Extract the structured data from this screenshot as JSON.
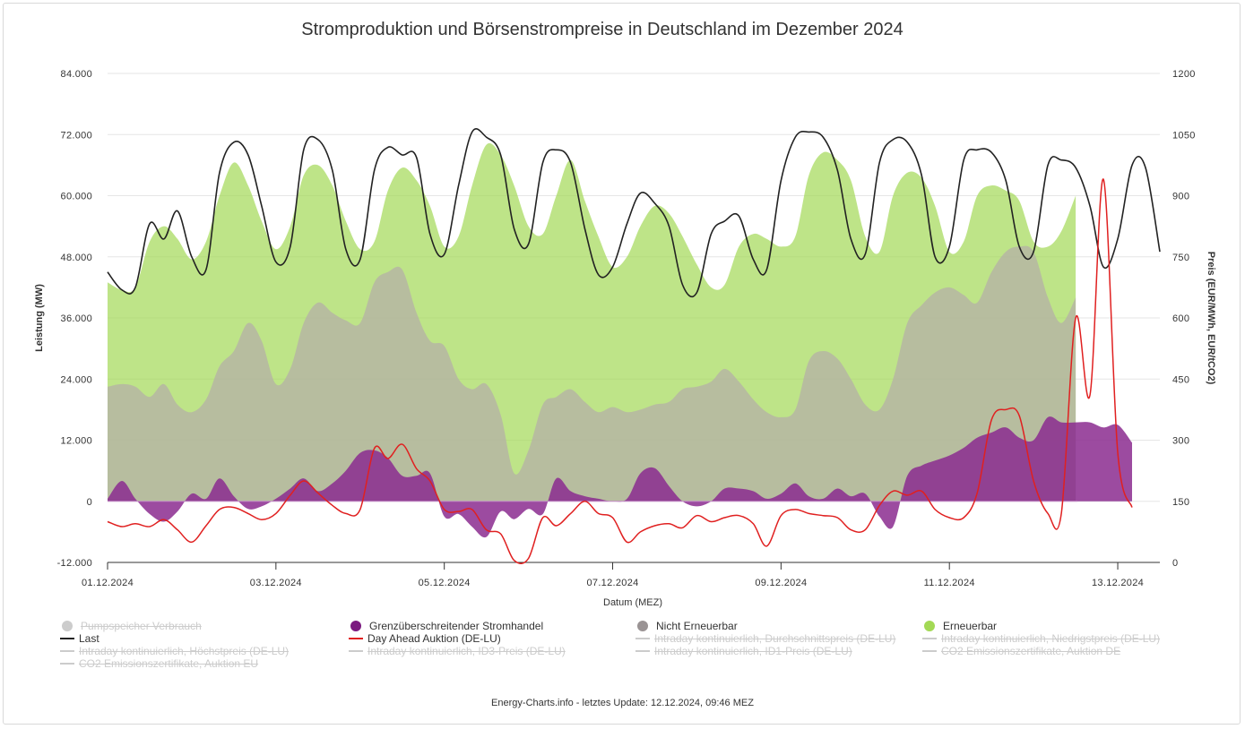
{
  "chart_data": {
    "type": "area",
    "title": "Stromproduktion und Börsenstrompreise in Deutschland im Dezember 2024",
    "xlabel": "Datum (MEZ)",
    "ylabel_left": "Leistung (MW)",
    "ylabel_right": "Preis (EUR/MWh, EUR/tCO2)",
    "ylim_left": [
      -12000,
      84000
    ],
    "ylim_right": [
      0,
      1200
    ],
    "xlim": [
      0.0,
      12.5
    ],
    "y_ticks_left": [
      "-12.000",
      "0",
      "12.000",
      "24.000",
      "36.000",
      "48.000",
      "60.000",
      "72.000",
      "84.000"
    ],
    "y_ticks_right": [
      "0",
      "150",
      "300",
      "450",
      "600",
      "750",
      "900",
      "1050",
      "1200"
    ],
    "x_ticks": [
      "01.12.2024",
      "03.12.2024",
      "05.12.2024",
      "07.12.2024",
      "09.12.2024",
      "11.12.2024",
      "13.12.2024"
    ],
    "grid": true,
    "legend_position": "bottom",
    "x_unit": "days since 01.12.2024 00:00",
    "series": [
      {
        "name": "Erneuerbar",
        "kind": "area",
        "axis": "left",
        "color": "#a3d955",
        "x": [
          0,
          0.17,
          0.33,
          0.5,
          0.67,
          0.83,
          1.0,
          1.17,
          1.33,
          1.5,
          1.67,
          1.83,
          2.0,
          2.17,
          2.33,
          2.5,
          2.67,
          2.83,
          3.0,
          3.17,
          3.33,
          3.5,
          3.67,
          3.83,
          4.0,
          4.17,
          4.33,
          4.5,
          4.67,
          4.83,
          5.0,
          5.17,
          5.33,
          5.5,
          5.67,
          5.83,
          6.0,
          6.17,
          6.33,
          6.5,
          6.67,
          6.83,
          7.0,
          7.17,
          7.33,
          7.5,
          7.67,
          7.83,
          8.0,
          8.17,
          8.33,
          8.5,
          8.67,
          8.83,
          9.0,
          9.17,
          9.33,
          9.5,
          9.67,
          9.83,
          10.0,
          10.17,
          10.33,
          10.5,
          10.67,
          10.83,
          11.0,
          11.17,
          11.33,
          11.5
        ],
        "y": [
          43000,
          41500,
          42000,
          51000,
          54000,
          51500,
          47500,
          51000,
          60000,
          66500,
          62000,
          55000,
          49500,
          54000,
          64000,
          66000,
          62000,
          55000,
          49500,
          51000,
          61000,
          65500,
          63000,
          58000,
          50000,
          52000,
          62000,
          70000,
          68000,
          62000,
          54000,
          52500,
          60000,
          67000,
          59000,
          52000,
          46000,
          48000,
          54000,
          58000,
          56500,
          52000,
          46500,
          42000,
          42500,
          50000,
          52500,
          51500,
          50000,
          52000,
          64000,
          68500,
          67000,
          63000,
          52000,
          49000,
          60000,
          64500,
          63500,
          58000,
          49000,
          51000,
          60000,
          62000,
          61000,
          59000,
          51000,
          50000,
          53000,
          60000
        ]
      },
      {
        "name": "Nicht Erneuerbar",
        "kind": "area",
        "axis": "left",
        "color": "#b3acaa",
        "x": [
          0,
          0.17,
          0.33,
          0.5,
          0.67,
          0.83,
          1.0,
          1.17,
          1.33,
          1.5,
          1.67,
          1.83,
          2.0,
          2.17,
          2.33,
          2.5,
          2.67,
          2.83,
          3.0,
          3.17,
          3.33,
          3.5,
          3.67,
          3.83,
          4.0,
          4.17,
          4.33,
          4.5,
          4.67,
          4.83,
          5.0,
          5.17,
          5.33,
          5.5,
          5.67,
          5.83,
          6.0,
          6.17,
          6.33,
          6.5,
          6.67,
          6.83,
          7.0,
          7.17,
          7.33,
          7.5,
          7.67,
          7.83,
          8.0,
          8.17,
          8.33,
          8.5,
          8.67,
          8.83,
          9.0,
          9.17,
          9.33,
          9.5,
          9.67,
          9.83,
          10.0,
          10.17,
          10.33,
          10.5,
          10.67,
          10.83,
          11.0,
          11.17,
          11.33,
          11.5
        ],
        "y": [
          22500,
          23000,
          22500,
          20500,
          23000,
          19000,
          17500,
          20000,
          26500,
          29500,
          35000,
          31500,
          23000,
          26000,
          35000,
          39000,
          37000,
          35500,
          35000,
          43000,
          45000,
          45500,
          37000,
          31500,
          30500,
          24000,
          22000,
          23000,
          17000,
          5500,
          10000,
          19000,
          20500,
          22000,
          19500,
          17500,
          18500,
          17500,
          18000,
          19000,
          19500,
          22000,
          22500,
          23500,
          26000,
          23500,
          20000,
          17500,
          16500,
          18000,
          27500,
          29500,
          28000,
          24000,
          19000,
          18000,
          24000,
          35000,
          38500,
          41000,
          42000,
          40500,
          39000,
          45000,
          49000,
          50000,
          49000,
          40000,
          35000,
          40000
        ]
      },
      {
        "name": "Grenzüberschreitender Stromhandel",
        "kind": "area",
        "axis": "left",
        "color": "#8b2c8f",
        "x": [
          0,
          0.17,
          0.33,
          0.5,
          0.67,
          0.83,
          1.0,
          1.17,
          1.33,
          1.5,
          1.67,
          1.83,
          2.0,
          2.17,
          2.33,
          2.5,
          2.67,
          2.83,
          3.0,
          3.17,
          3.33,
          3.5,
          3.67,
          3.83,
          4.0,
          4.17,
          4.33,
          4.5,
          4.67,
          4.83,
          5.0,
          5.17,
          5.33,
          5.5,
          5.67,
          5.83,
          6.0,
          6.17,
          6.33,
          6.5,
          6.67,
          6.83,
          7.0,
          7.17,
          7.33,
          7.5,
          7.67,
          7.83,
          8.0,
          8.17,
          8.33,
          8.5,
          8.67,
          8.83,
          9.0,
          9.17,
          9.33,
          9.5,
          9.67,
          9.83,
          10.0,
          10.17,
          10.33,
          10.5,
          10.67,
          10.83,
          11.0,
          11.17,
          11.33,
          11.5,
          11.67,
          11.83,
          12.0,
          12.17
        ],
        "y": [
          500,
          4000,
          500,
          -2500,
          -4000,
          -2000,
          1500,
          500,
          4500,
          1000,
          -1500,
          -1000,
          500,
          2500,
          4500,
          2000,
          3500,
          6000,
          9500,
          10000,
          8500,
          5000,
          5000,
          5500,
          -3000,
          -2500,
          -5000,
          -7000,
          -2000,
          -3500,
          -1500,
          -2500,
          4500,
          2000,
          1000,
          500,
          0,
          500,
          5500,
          6500,
          3000,
          0,
          -1000,
          0,
          2500,
          2500,
          2000,
          500,
          1500,
          3500,
          1000,
          500,
          2500,
          1000,
          1500,
          -3000,
          -5000,
          5000,
          7000,
          8000,
          9000,
          10500,
          12500,
          13500,
          14500,
          12500,
          12000,
          16500,
          15500,
          15500,
          15500,
          14500,
          15000,
          11500
        ]
      },
      {
        "name": "Last",
        "kind": "line",
        "axis": "left",
        "color": "#222222",
        "x": [
          0,
          0.17,
          0.33,
          0.5,
          0.67,
          0.83,
          1.0,
          1.17,
          1.33,
          1.5,
          1.67,
          1.83,
          2.0,
          2.17,
          2.33,
          2.5,
          2.67,
          2.83,
          3.0,
          3.17,
          3.33,
          3.5,
          3.67,
          3.83,
          4.0,
          4.17,
          4.33,
          4.5,
          4.67,
          4.83,
          5.0,
          5.17,
          5.33,
          5.5,
          5.67,
          5.83,
          6.0,
          6.17,
          6.33,
          6.5,
          6.67,
          6.83,
          7.0,
          7.17,
          7.33,
          7.5,
          7.67,
          7.83,
          8.0,
          8.17,
          8.33,
          8.5,
          8.67,
          8.83,
          9.0,
          9.17,
          9.33,
          9.5,
          9.67,
          9.83,
          10.0,
          10.17,
          10.33,
          10.5,
          10.67,
          10.83,
          11.0,
          11.17,
          11.33,
          11.5,
          11.67,
          11.83,
          12.0,
          12.17,
          12.33,
          12.5
        ],
        "y": [
          45000,
          41500,
          42000,
          54500,
          51500,
          57000,
          48000,
          45500,
          64500,
          70500,
          68000,
          58000,
          47000,
          50000,
          69000,
          71000,
          65000,
          49500,
          47500,
          65000,
          69500,
          68000,
          67500,
          52500,
          48500,
          62000,
          72500,
          71500,
          68000,
          53500,
          50500,
          66500,
          69000,
          66500,
          53500,
          44500,
          46000,
          54500,
          60500,
          58500,
          54000,
          42500,
          41000,
          52500,
          55000,
          56000,
          47500,
          45500,
          63000,
          71500,
          72500,
          71500,
          65000,
          51500,
          48500,
          66500,
          71000,
          70500,
          64000,
          48000,
          50000,
          67000,
          69000,
          68500,
          63000,
          50000,
          49000,
          66000,
          67000,
          65500,
          58000,
          46000,
          51500,
          66000,
          65500,
          49000
        ]
      },
      {
        "name": "Day Ahead Auktion (DE-LU)",
        "kind": "line",
        "axis": "right",
        "color": "#e02020",
        "x": [
          0,
          0.17,
          0.33,
          0.5,
          0.67,
          0.83,
          1.0,
          1.17,
          1.33,
          1.5,
          1.67,
          1.83,
          2.0,
          2.17,
          2.33,
          2.5,
          2.67,
          2.83,
          3.0,
          3.17,
          3.33,
          3.5,
          3.67,
          3.83,
          4.0,
          4.17,
          4.33,
          4.5,
          4.67,
          4.83,
          5.0,
          5.17,
          5.33,
          5.5,
          5.67,
          5.83,
          6.0,
          6.17,
          6.33,
          6.5,
          6.67,
          6.83,
          7.0,
          7.17,
          7.33,
          7.5,
          7.67,
          7.83,
          8.0,
          8.17,
          8.33,
          8.5,
          8.67,
          8.83,
          9.0,
          9.17,
          9.33,
          9.5,
          9.67,
          9.83,
          10.0,
          10.17,
          10.33,
          10.5,
          10.67,
          10.83,
          11.0,
          11.17,
          11.33,
          11.5,
          11.67,
          11.83,
          12.0,
          12.17
        ],
        "y": [
          100,
          88,
          95,
          88,
          105,
          80,
          50,
          90,
          130,
          135,
          120,
          105,
          120,
          165,
          200,
          170,
          140,
          120,
          130,
          280,
          255,
          290,
          230,
          200,
          130,
          125,
          130,
          80,
          70,
          5,
          10,
          110,
          90,
          120,
          150,
          120,
          110,
          50,
          75,
          90,
          95,
          85,
          115,
          100,
          110,
          115,
          95,
          40,
          115,
          130,
          120,
          115,
          110,
          80,
          80,
          140,
          175,
          165,
          175,
          130,
          110,
          110,
          170,
          350,
          375,
          360,
          200,
          120,
          120,
          600,
          410,
          940,
          270,
          135
        ]
      },
      {
        "name": "Pumpspeicher Verbrauch",
        "kind": "area",
        "axis": "left",
        "color": "#cccccc",
        "visible": false,
        "values": []
      },
      {
        "name": "Intraday kontinuierlich, Durchschnittspreis (DE-LU)",
        "kind": "line",
        "visible": false,
        "values": []
      },
      {
        "name": "Intraday kontinuierlich, Niedrigstpreis (DE-LU)",
        "kind": "line",
        "visible": false,
        "values": []
      },
      {
        "name": "Intraday kontinuierlich, Höchstpreis (DE-LU)",
        "kind": "line",
        "visible": false,
        "values": []
      },
      {
        "name": "Intraday kontinuierlich, ID3-Preis (DE-LU)",
        "kind": "line",
        "visible": false,
        "values": []
      },
      {
        "name": "Intraday kontinuierlich, ID1-Preis (DE-LU)",
        "kind": "line",
        "visible": false,
        "values": []
      },
      {
        "name": "CO2 Emissionszertifikate, Auktion DE",
        "kind": "line",
        "visible": false,
        "values": []
      },
      {
        "name": "CO2 Emissionszertifikate, Auktion EU",
        "kind": "line",
        "visible": false,
        "values": []
      }
    ]
  },
  "legend": [
    {
      "label": "Pumpspeicher Verbrauch",
      "symbol": "dot",
      "color": "#cccccc",
      "enabled": false
    },
    {
      "label": "Grenzüberschreitender Stromhandel",
      "symbol": "dot",
      "color": "#7b1a80",
      "enabled": true
    },
    {
      "label": "Nicht Erneuerbar",
      "symbol": "dot",
      "color": "#9a9394",
      "enabled": true
    },
    {
      "label": "Erneuerbar",
      "symbol": "dot",
      "color": "#a3d955",
      "enabled": true
    },
    {
      "label": "Last",
      "symbol": "line",
      "color": "#222222",
      "enabled": true
    },
    {
      "label": "Day Ahead Auktion (DE-LU)",
      "symbol": "line",
      "color": "#e02020",
      "enabled": true
    },
    {
      "label": "Intraday kontinuierlich, Durchschnittspreis (DE-LU)",
      "symbol": "line",
      "color": "#cccccc",
      "enabled": false
    },
    {
      "label": "Intraday kontinuierlich, Niedrigstpreis (DE-LU)",
      "symbol": "line",
      "color": "#cccccc",
      "enabled": false
    },
    {
      "label": "Intraday kontinuierlich, Höchstpreis (DE-LU)",
      "symbol": "line",
      "color": "#cccccc",
      "enabled": false
    },
    {
      "label": "Intraday kontinuierlich, ID3-Preis (DE-LU)",
      "symbol": "line",
      "color": "#cccccc",
      "enabled": false
    },
    {
      "label": "Intraday kontinuierlich, ID1-Preis (DE-LU)",
      "symbol": "line",
      "color": "#cccccc",
      "enabled": false
    },
    {
      "label": "CO2 Emissionszertifikate, Auktion DE",
      "symbol": "line",
      "color": "#cccccc",
      "enabled": false
    },
    {
      "label": "CO2 Emissionszertifikate, Auktion EU",
      "symbol": "line",
      "color": "#cccccc",
      "enabled": false
    }
  ],
  "credits": "Energy-Charts.info - letztes Update: 12.12.2024, 09:46 MEZ"
}
